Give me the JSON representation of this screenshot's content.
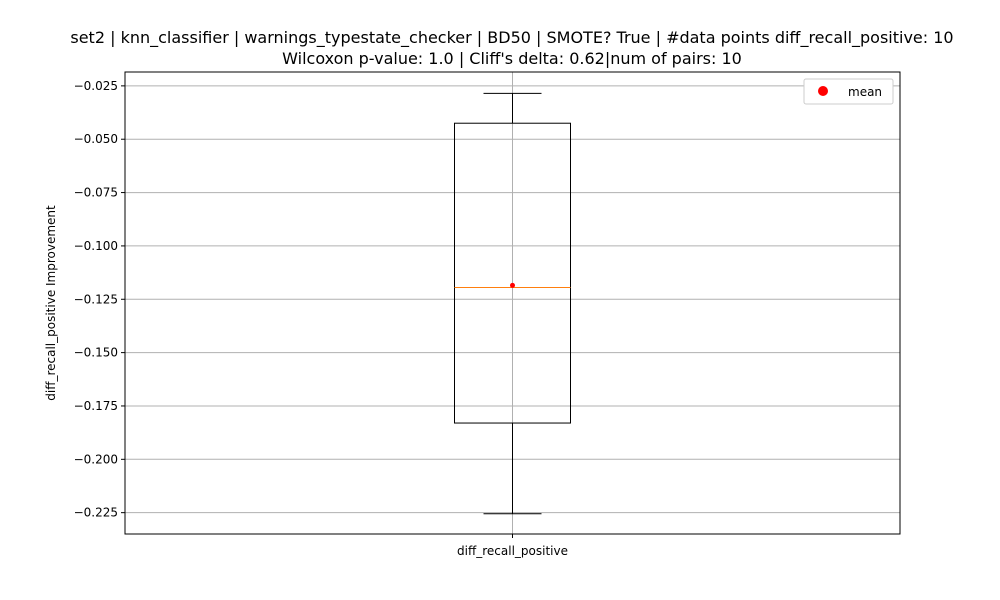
{
  "chart_data": {
    "type": "box",
    "title_line1": "set2 | knn_classifier | warnings_typestate_checker | BD50 | SMOTE? True | #data points diff_recall_positive: 10",
    "title_line2": "Wilcoxon p-value: 1.0 | Cliff's delta: 0.62|num of pairs: 10",
    "xlabel": "",
    "ylabel": "diff_recall_positive Improvement",
    "categories": [
      "diff_recall_positive"
    ],
    "ylim": [
      -0.235,
      -0.0185
    ],
    "yticks": [
      -0.025,
      -0.05,
      -0.075,
      -0.1,
      -0.125,
      -0.15,
      -0.175,
      -0.2,
      -0.225
    ],
    "ytick_labels": [
      "−0.025",
      "−0.050",
      "−0.075",
      "−0.100",
      "−0.125",
      "−0.150",
      "−0.175",
      "−0.200",
      "−0.225"
    ],
    "grid": true,
    "box": {
      "whisker_high": -0.0285,
      "q3": -0.0425,
      "median": -0.1195,
      "q1": -0.183,
      "whisker_low": -0.2255,
      "mean": -0.1185
    },
    "legend": {
      "position": "upper right",
      "entries": [
        {
          "label": "mean",
          "marker": "circle",
          "color": "#ff0000"
        }
      ]
    },
    "colors": {
      "box": "#000000",
      "median": "#ff7f0e",
      "mean": "#ff0000",
      "grid": "#b0b0b0"
    }
  }
}
